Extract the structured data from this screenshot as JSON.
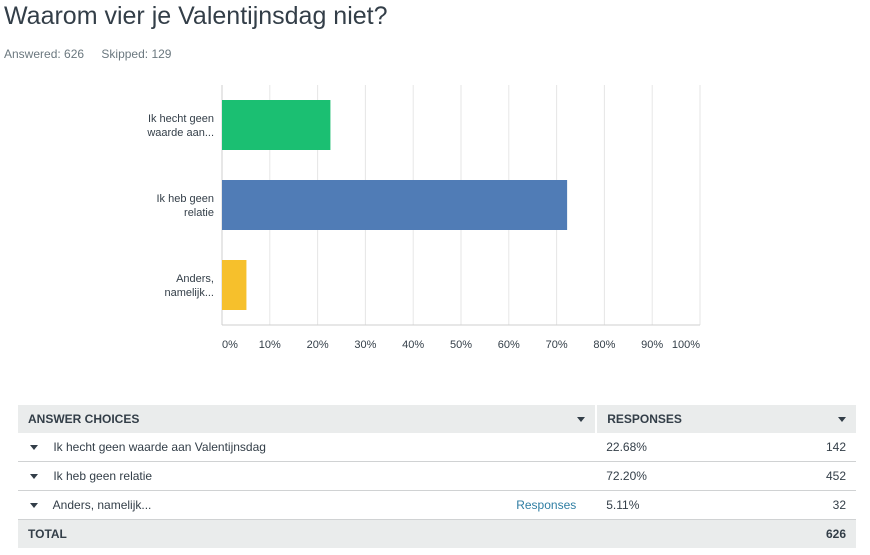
{
  "question": {
    "title": "Waarom vier je Valentijnsdag niet?",
    "answered_label": "Answered: 626",
    "skipped_label": "Skipped: 129"
  },
  "chart_data": {
    "type": "bar",
    "orientation": "horizontal",
    "categories": [
      "Ik hecht geen waarde aan...",
      "Ik heb geen relatie",
      "Anders, namelijk..."
    ],
    "category_lines": [
      [
        "Ik hecht geen",
        "waarde aan..."
      ],
      [
        "Ik heb geen",
        "relatie"
      ],
      [
        "Anders,",
        "namelijk..."
      ]
    ],
    "values": [
      22.68,
      72.2,
      5.11
    ],
    "colors": [
      "#1bbf72",
      "#507cb6",
      "#f6c02c"
    ],
    "xlim": [
      0,
      100
    ],
    "xticks": [
      "0%",
      "10%",
      "20%",
      "30%",
      "40%",
      "50%",
      "60%",
      "70%",
      "80%",
      "90%",
      "100%"
    ],
    "grid": true
  },
  "table": {
    "header_choices": "ANSWER CHOICES",
    "header_responses": "RESPONSES",
    "rows": [
      {
        "choice": "Ik hecht geen waarde aan Valentijnsdag",
        "percent": "22.68%",
        "count": "142",
        "link": ""
      },
      {
        "choice": "Ik heb geen relatie",
        "percent": "72.20%",
        "count": "452",
        "link": ""
      },
      {
        "choice": "Anders, namelijk...",
        "percent": "5.11%",
        "count": "32",
        "link": "Responses"
      }
    ],
    "total_label": "TOTAL",
    "total_value": "626"
  }
}
